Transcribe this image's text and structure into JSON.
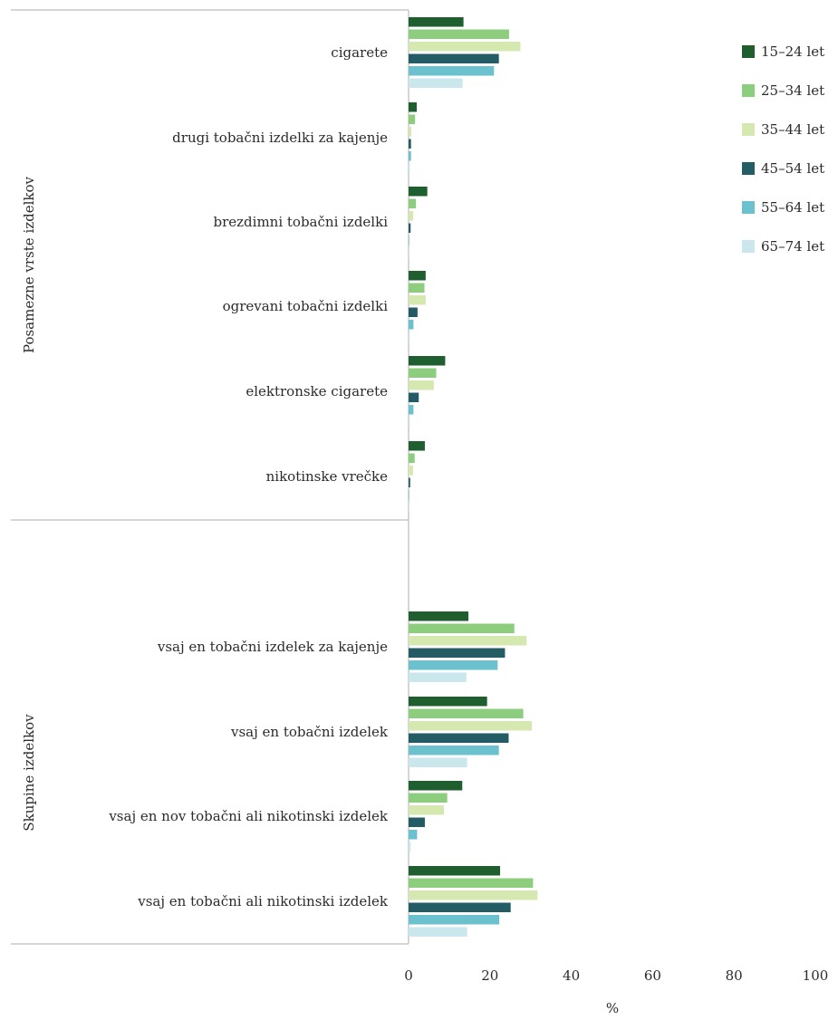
{
  "chart_data": {
    "type": "bar",
    "orientation": "horizontal",
    "xlabel": "%",
    "xlim": [
      0,
      100
    ],
    "xticks": [
      0,
      20,
      40,
      60,
      80,
      100
    ],
    "grid": false,
    "legend_position": "top-right",
    "groups": [
      {
        "label": "Posamezne vrste izdelkov",
        "categories": [
          "cigarete",
          "drugi tobačni izdelki za kajenje",
          "brezdimni tobačni izdelki",
          "ogrevani tobačni izdelki",
          "elektronske cigarete",
          "nikotinske vrečke"
        ]
      },
      {
        "label": "Skupine izdelkov",
        "categories": [
          "vsaj en tobačni izdelek za kajenje",
          "vsaj en tobačni izdelek",
          "vsaj en nov tobačni ali nikotinski izdelek",
          "vsaj en tobačni ali nikotinski izdelek"
        ]
      }
    ],
    "series": [
      {
        "name": "15–24 let",
        "color": "#1f5e2e",
        "values": [
          13.5,
          2.0,
          4.6,
          4.2,
          9.0,
          4.0,
          14.7,
          19.3,
          13.2,
          22.5
        ]
      },
      {
        "name": "25–34 let",
        "color": "#8ccd7e",
        "values": [
          24.7,
          1.6,
          1.8,
          3.9,
          6.8,
          1.5,
          26.0,
          28.2,
          9.5,
          30.6
        ]
      },
      {
        "name": "35–44 let",
        "color": "#d4e8b0",
        "values": [
          27.5,
          0.7,
          1.1,
          4.2,
          6.2,
          1.1,
          29.0,
          30.3,
          8.7,
          31.7
        ]
      },
      {
        "name": "45–54 let",
        "color": "#245c66",
        "values": [
          22.2,
          0.6,
          0.5,
          2.2,
          2.5,
          0.4,
          23.7,
          24.6,
          4.0,
          25.1
        ]
      },
      {
        "name": "55–64 let",
        "color": "#6cc1cf",
        "values": [
          21.0,
          0.6,
          0.1,
          1.2,
          1.2,
          0.1,
          21.9,
          22.2,
          2.1,
          22.3
        ]
      },
      {
        "name": "65–74 let",
        "color": "#c9e7ec",
        "values": [
          13.3,
          0.3,
          0.1,
          0.3,
          0.3,
          0.1,
          14.2,
          14.4,
          0.5,
          14.4
        ]
      }
    ]
  }
}
